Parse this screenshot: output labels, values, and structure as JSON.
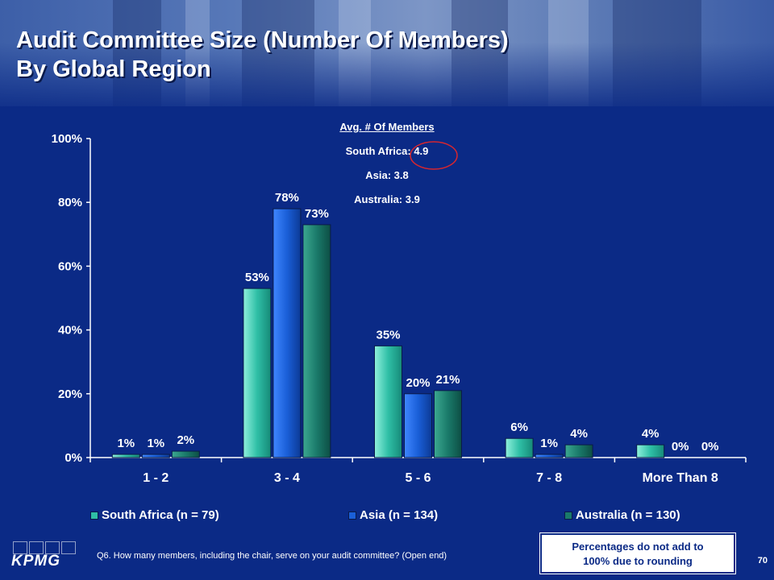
{
  "slide": {
    "title_line1": "Audit Committee Size (Number Of Members)",
    "title_line2": "By Global Region",
    "footnote": "Q6. How many members, including the chair, serve on your audit committee? (Open end)",
    "note_line1": "Percentages do not add to",
    "note_line2": "100% due to rounding",
    "page_number": "70",
    "logo_text": "KPMG"
  },
  "averages": {
    "title": "Avg. # Of Members",
    "lines": [
      "South Africa: 4.9",
      "Asia: 3.8",
      "Australia: 3.9"
    ],
    "highlighted_value": "4.9",
    "highlight_color": "#d8262e"
  },
  "chart_data": {
    "type": "bar",
    "title": "",
    "xlabel": "",
    "ylabel": "",
    "categories": [
      "1 - 2",
      "3 - 4",
      "5 - 6",
      "7 - 8",
      "More Than 8"
    ],
    "ylim": [
      0,
      100
    ],
    "yticks": [
      0,
      20,
      40,
      60,
      80,
      100
    ],
    "ytick_labels": [
      "0%",
      "20%",
      "40%",
      "60%",
      "80%",
      "100%"
    ],
    "grid": false,
    "legend_position": "bottom",
    "series": [
      {
        "name": "South Africa (n = 79)",
        "values": [
          1,
          53,
          35,
          6,
          4
        ],
        "labels": [
          "1%",
          "53%",
          "35%",
          "6%",
          "4%"
        ],
        "color": "#2fbfa6"
      },
      {
        "name": "Asia (n = 134)",
        "values": [
          1,
          78,
          20,
          1,
          0
        ],
        "labels": [
          "1%",
          "78%",
          "20%",
          "1%",
          "0%"
        ],
        "color": "#1a5fd8"
      },
      {
        "name": "Australia (n = 130)",
        "values": [
          2,
          73,
          21,
          4,
          0
        ],
        "labels": [
          "2%",
          "73%",
          "21%",
          "4%",
          "0%"
        ],
        "color": "#1a7a6a"
      }
    ]
  }
}
